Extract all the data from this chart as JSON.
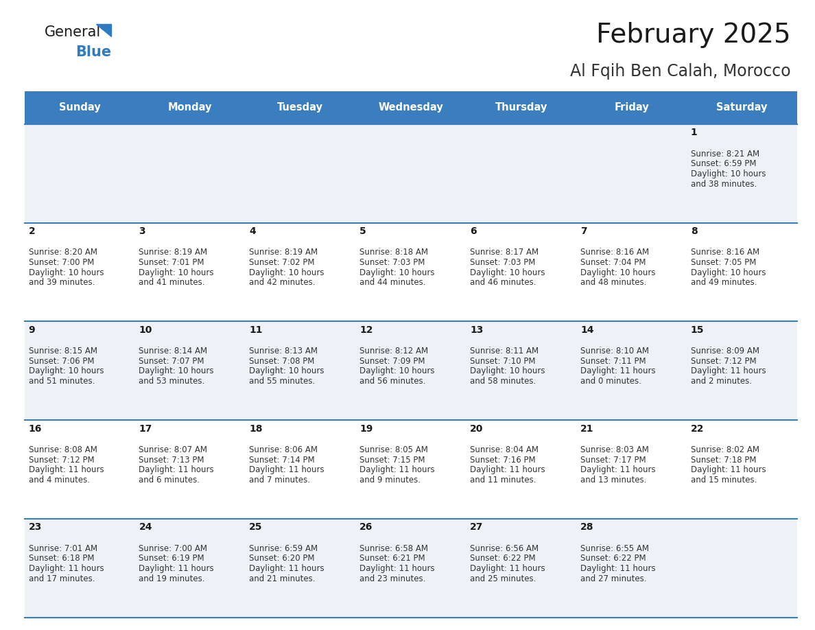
{
  "title": "February 2025",
  "subtitle": "Al Fqih Ben Calah, Morocco",
  "header_bg": "#3a7ebf",
  "header_text_color": "#ffffff",
  "row_bg_odd": "#eef2f7",
  "row_bg_even": "#ffffff",
  "cell_border_color": "#3a7ebf",
  "day_headers": [
    "Sunday",
    "Monday",
    "Tuesday",
    "Wednesday",
    "Thursday",
    "Friday",
    "Saturday"
  ],
  "calendar": [
    [
      {
        "day": "",
        "sunrise": "",
        "sunset": "",
        "daylight": ""
      },
      {
        "day": "",
        "sunrise": "",
        "sunset": "",
        "daylight": ""
      },
      {
        "day": "",
        "sunrise": "",
        "sunset": "",
        "daylight": ""
      },
      {
        "day": "",
        "sunrise": "",
        "sunset": "",
        "daylight": ""
      },
      {
        "day": "",
        "sunrise": "",
        "sunset": "",
        "daylight": ""
      },
      {
        "day": "",
        "sunrise": "",
        "sunset": "",
        "daylight": ""
      },
      {
        "day": "1",
        "sunrise": "8:21 AM",
        "sunset": "6:59 PM",
        "daylight": "10 hours and 38 minutes."
      }
    ],
    [
      {
        "day": "2",
        "sunrise": "8:20 AM",
        "sunset": "7:00 PM",
        "daylight": "10 hours and 39 minutes."
      },
      {
        "day": "3",
        "sunrise": "8:19 AM",
        "sunset": "7:01 PM",
        "daylight": "10 hours and 41 minutes."
      },
      {
        "day": "4",
        "sunrise": "8:19 AM",
        "sunset": "7:02 PM",
        "daylight": "10 hours and 42 minutes."
      },
      {
        "day": "5",
        "sunrise": "8:18 AM",
        "sunset": "7:03 PM",
        "daylight": "10 hours and 44 minutes."
      },
      {
        "day": "6",
        "sunrise": "8:17 AM",
        "sunset": "7:03 PM",
        "daylight": "10 hours and 46 minutes."
      },
      {
        "day": "7",
        "sunrise": "8:16 AM",
        "sunset": "7:04 PM",
        "daylight": "10 hours and 48 minutes."
      },
      {
        "day": "8",
        "sunrise": "8:16 AM",
        "sunset": "7:05 PM",
        "daylight": "10 hours and 49 minutes."
      }
    ],
    [
      {
        "day": "9",
        "sunrise": "8:15 AM",
        "sunset": "7:06 PM",
        "daylight": "10 hours and 51 minutes."
      },
      {
        "day": "10",
        "sunrise": "8:14 AM",
        "sunset": "7:07 PM",
        "daylight": "10 hours and 53 minutes."
      },
      {
        "day": "11",
        "sunrise": "8:13 AM",
        "sunset": "7:08 PM",
        "daylight": "10 hours and 55 minutes."
      },
      {
        "day": "12",
        "sunrise": "8:12 AM",
        "sunset": "7:09 PM",
        "daylight": "10 hours and 56 minutes."
      },
      {
        "day": "13",
        "sunrise": "8:11 AM",
        "sunset": "7:10 PM",
        "daylight": "10 hours and 58 minutes."
      },
      {
        "day": "14",
        "sunrise": "8:10 AM",
        "sunset": "7:11 PM",
        "daylight": "11 hours and 0 minutes."
      },
      {
        "day": "15",
        "sunrise": "8:09 AM",
        "sunset": "7:12 PM",
        "daylight": "11 hours and 2 minutes."
      }
    ],
    [
      {
        "day": "16",
        "sunrise": "8:08 AM",
        "sunset": "7:12 PM",
        "daylight": "11 hours and 4 minutes."
      },
      {
        "day": "17",
        "sunrise": "8:07 AM",
        "sunset": "7:13 PM",
        "daylight": "11 hours and 6 minutes."
      },
      {
        "day": "18",
        "sunrise": "8:06 AM",
        "sunset": "7:14 PM",
        "daylight": "11 hours and 7 minutes."
      },
      {
        "day": "19",
        "sunrise": "8:05 AM",
        "sunset": "7:15 PM",
        "daylight": "11 hours and 9 minutes."
      },
      {
        "day": "20",
        "sunrise": "8:04 AM",
        "sunset": "7:16 PM",
        "daylight": "11 hours and 11 minutes."
      },
      {
        "day": "21",
        "sunrise": "8:03 AM",
        "sunset": "7:17 PM",
        "daylight": "11 hours and 13 minutes."
      },
      {
        "day": "22",
        "sunrise": "8:02 AM",
        "sunset": "7:18 PM",
        "daylight": "11 hours and 15 minutes."
      }
    ],
    [
      {
        "day": "23",
        "sunrise": "7:01 AM",
        "sunset": "6:18 PM",
        "daylight": "11 hours and 17 minutes."
      },
      {
        "day": "24",
        "sunrise": "7:00 AM",
        "sunset": "6:19 PM",
        "daylight": "11 hours and 19 minutes."
      },
      {
        "day": "25",
        "sunrise": "6:59 AM",
        "sunset": "6:20 PM",
        "daylight": "11 hours and 21 minutes."
      },
      {
        "day": "26",
        "sunrise": "6:58 AM",
        "sunset": "6:21 PM",
        "daylight": "11 hours and 23 minutes."
      },
      {
        "day": "27",
        "sunrise": "6:56 AM",
        "sunset": "6:22 PM",
        "daylight": "11 hours and 25 minutes."
      },
      {
        "day": "28",
        "sunrise": "6:55 AM",
        "sunset": "6:22 PM",
        "daylight": "11 hours and 27 minutes."
      },
      {
        "day": "",
        "sunrise": "",
        "sunset": "",
        "daylight": ""
      }
    ]
  ],
  "fig_width": 11.88,
  "fig_height": 9.18,
  "dpi": 100
}
